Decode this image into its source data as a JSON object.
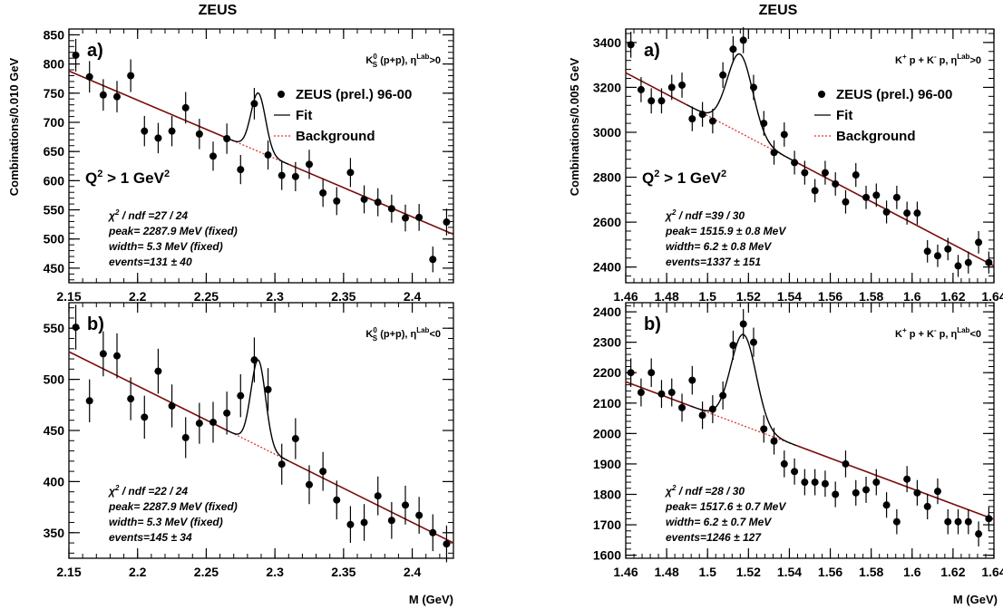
{
  "headers": {
    "left": "ZEUS",
    "right": "ZEUS"
  },
  "ylabels": {
    "left": "Combinations/0.010 GeV",
    "right": "Combinations/0.005 GeV"
  },
  "xlabel": "M (GeV)",
  "legend": {
    "data": "ZEUS (prel.) 96-00",
    "fit": "Fit",
    "background": "Background"
  },
  "q2_label": {
    "base": "Q",
    "sup1": "2",
    "mid": " > 1 GeV",
    "sup2": "2"
  },
  "chart_data": [
    {
      "type": "scatter",
      "panel_label": "a)",
      "channel_main": "K",
      "channel_sub": "S",
      "channel_sup": "0",
      "channel_rest": " (p+p), η",
      "channel_eta_sup": "Lab",
      "channel_cut": ">0",
      "xlim": [
        2.15,
        2.43
      ],
      "ylim": [
        425,
        860
      ],
      "xticks": [
        2.15,
        2.2,
        2.25,
        2.3,
        2.35,
        2.4
      ],
      "xtick_labels": [
        "2.15",
        "2.2",
        "2.25",
        "2.3",
        "2.35",
        "2.4"
      ],
      "yticks": [
        450,
        500,
        550,
        600,
        650,
        700,
        750,
        800,
        850
      ],
      "ytick_labels": [
        "450",
        "500",
        "550",
        "600",
        "650",
        "700",
        "750",
        "800",
        "850"
      ],
      "x": [
        2.155,
        2.165,
        2.175,
        2.185,
        2.195,
        2.205,
        2.215,
        2.225,
        2.235,
        2.245,
        2.255,
        2.265,
        2.275,
        2.285,
        2.295,
        2.305,
        2.315,
        2.325,
        2.335,
        2.345,
        2.355,
        2.365,
        2.375,
        2.385,
        2.395,
        2.405,
        2.415,
        2.425
      ],
      "y": [
        815,
        778,
        747,
        744,
        780,
        685,
        673,
        685,
        725,
        680,
        642,
        672,
        619,
        732,
        644,
        609,
        607,
        628,
        579,
        565,
        614,
        568,
        563,
        552,
        536,
        537,
        465,
        529
      ],
      "yerr": [
        28,
        27,
        27,
        27,
        28,
        26,
        26,
        26,
        27,
        26,
        25,
        26,
        25,
        27,
        25,
        25,
        25,
        25,
        24,
        24,
        25,
        24,
        24,
        24,
        23,
        23,
        22,
        23
      ],
      "background": {
        "x1": 2.15,
        "y1": 788,
        "x2": 2.43,
        "y2": 508
      },
      "fit": {
        "mean": 2.2879,
        "sigma": 0.0053,
        "amplitude": 100
      },
      "stats": {
        "chi2_prefix": "χ",
        "chi2_sup": "2",
        "chi2_rest": " / ndf =27 / 24",
        "peak": "peak= 2287.9 MeV (fixed)",
        "width": "width=    5.3 MeV (fixed)",
        "events": "events=131 ± 40"
      },
      "show_legend": true,
      "show_q2": true
    },
    {
      "type": "scatter",
      "panel_label": "a)",
      "channel_main": "K",
      "channel_sub": "",
      "channel_sup": "+",
      "channel_rest": " p + K",
      "channel_sup2": "-",
      "channel_rest2": " p,  η",
      "channel_eta_sup": "Lab",
      "channel_cut": ">0",
      "xlim": [
        1.46,
        1.64
      ],
      "ylim": [
        2330,
        3460
      ],
      "xticks": [
        1.46,
        1.48,
        1.5,
        1.52,
        1.54,
        1.56,
        1.58,
        1.6,
        1.62,
        1.64
      ],
      "xtick_labels": [
        "1.46",
        "1.48",
        "1.5",
        "1.52",
        "1.54",
        "1.56",
        "1.58",
        "1.6",
        "1.62",
        "1.64"
      ],
      "yticks": [
        2400,
        2600,
        2800,
        3000,
        3200,
        3400
      ],
      "ytick_labels": [
        "2400",
        "2600",
        "2800",
        "3000",
        "3200",
        "3400"
      ],
      "x": [
        1.4625,
        1.4675,
        1.4725,
        1.4775,
        1.4825,
        1.4875,
        1.4925,
        1.4975,
        1.5025,
        1.5075,
        1.5125,
        1.5175,
        1.5225,
        1.5275,
        1.5325,
        1.5375,
        1.5425,
        1.5475,
        1.5525,
        1.5575,
        1.5625,
        1.5675,
        1.5725,
        1.5775,
        1.5825,
        1.5875,
        1.5925,
        1.5975,
        1.6025,
        1.6075,
        1.6125,
        1.6175,
        1.6225,
        1.6275,
        1.6325,
        1.6375
      ],
      "y": [
        3390,
        3190,
        3140,
        3140,
        3200,
        3210,
        3060,
        3080,
        3050,
        3255,
        3370,
        3410,
        3200,
        3040,
        2910,
        2990,
        2865,
        2820,
        2740,
        2820,
        2770,
        2690,
        2810,
        2710,
        2720,
        2645,
        2710,
        2640,
        2640,
        2470,
        2450,
        2480,
        2405,
        2420,
        2510,
        2420
      ],
      "yerr": [
        58,
        56,
        56,
        56,
        56,
        56,
        55,
        55,
        55,
        57,
        58,
        58,
        56,
        55,
        54,
        54,
        53,
        53,
        52,
        53,
        52,
        52,
        53,
        52,
        52,
        51,
        52,
        51,
        51,
        50,
        50,
        50,
        49,
        49,
        50,
        49
      ],
      "background": {
        "x1": 1.46,
        "y1": 3265,
        "x2": 1.64,
        "y2": 2405
      },
      "fit": {
        "mean": 1.5159,
        "sigma": 0.0062,
        "amplitude": 350
      },
      "stats": {
        "chi2_prefix": "χ",
        "chi2_sup": "2",
        "chi2_rest": " / ndf =39 / 30",
        "peak": "peak= 1515.9 ± 0.8 MeV",
        "width": "width=    6.2 ± 0.8 MeV",
        "events": "events=1337 ± 151"
      },
      "show_legend": true,
      "show_q2": true
    },
    {
      "type": "scatter",
      "panel_label": "b)",
      "channel_main": "K",
      "channel_sub": "S",
      "channel_sup": "0",
      "channel_rest": " (p+p), η",
      "channel_eta_sup": "Lab",
      "channel_cut": "<0",
      "xlim": [
        2.15,
        2.43
      ],
      "ylim": [
        325,
        575
      ],
      "xticks": [
        2.15,
        2.2,
        2.25,
        2.3,
        2.35,
        2.4
      ],
      "xtick_labels": [
        "2.15",
        "2.2",
        "2.25",
        "2.3",
        "2.35",
        "2.4"
      ],
      "yticks": [
        350,
        400,
        450,
        500,
        550
      ],
      "ytick_labels": [
        "350",
        "400",
        "450",
        "500",
        "550"
      ],
      "x": [
        2.155,
        2.165,
        2.175,
        2.185,
        2.195,
        2.205,
        2.215,
        2.225,
        2.235,
        2.245,
        2.255,
        2.265,
        2.275,
        2.285,
        2.295,
        2.305,
        2.315,
        2.325,
        2.335,
        2.345,
        2.355,
        2.365,
        2.375,
        2.385,
        2.395,
        2.405,
        2.415,
        2.425
      ],
      "y": [
        551,
        479,
        525,
        523,
        481,
        463,
        508,
        474,
        443,
        457,
        458,
        467,
        484,
        519,
        490,
        417,
        442,
        397,
        410,
        382,
        358,
        360,
        386,
        362,
        377,
        367,
        350,
        339
      ],
      "yerr": [
        22,
        21,
        22,
        22,
        21,
        21,
        22,
        21,
        20,
        20,
        20,
        21,
        21,
        22,
        21,
        20,
        20,
        19,
        19,
        19,
        18,
        18,
        19,
        18,
        19,
        18,
        18,
        18
      ],
      "background": {
        "x1": 2.15,
        "y1": 527,
        "x2": 2.43,
        "y2": 340
      },
      "fit": {
        "mean": 2.2879,
        "sigma": 0.0053,
        "amplitude": 84
      },
      "stats": {
        "chi2_prefix": "χ",
        "chi2_sup": "2",
        "chi2_rest": " / ndf =22 / 24",
        "peak": "peak= 2287.9 MeV (fixed)",
        "width": "width=    5.3 MeV (fixed)",
        "events": "events=145 ± 34"
      },
      "show_legend": false,
      "show_q2": false
    },
    {
      "type": "scatter",
      "panel_label": "b)",
      "channel_main": "K",
      "channel_sub": "",
      "channel_sup": "+",
      "channel_rest": " p + K",
      "channel_sup2": "-",
      "channel_rest2": " p,  η",
      "channel_eta_sup": "Lab",
      "channel_cut": "<0",
      "xlim": [
        1.46,
        1.64
      ],
      "ylim": [
        1590,
        2430
      ],
      "xticks": [
        1.46,
        1.48,
        1.5,
        1.52,
        1.54,
        1.56,
        1.58,
        1.6,
        1.62,
        1.64
      ],
      "xtick_labels": [
        "1.46",
        "1.48",
        "1.5",
        "1.52",
        "1.54",
        "1.56",
        "1.58",
        "1.6",
        "1.62",
        "1.64"
      ],
      "yticks": [
        1600,
        1700,
        1800,
        1900,
        2000,
        2100,
        2200,
        2300,
        2400
      ],
      "ytick_labels": [
        "1600",
        "1700",
        "1800",
        "1900",
        "2000",
        "2100",
        "2200",
        "2300",
        "2400"
      ],
      "x": [
        1.4625,
        1.4675,
        1.4725,
        1.4775,
        1.4825,
        1.4875,
        1.4925,
        1.4975,
        1.5025,
        1.5075,
        1.5125,
        1.5175,
        1.5225,
        1.5275,
        1.5325,
        1.5375,
        1.5425,
        1.5475,
        1.5525,
        1.5575,
        1.5625,
        1.5675,
        1.5725,
        1.5775,
        1.5825,
        1.5875,
        1.5925,
        1.5975,
        1.6025,
        1.6075,
        1.6125,
        1.6175,
        1.6225,
        1.6275,
        1.6325,
        1.6375
      ],
      "y": [
        2200,
        2135,
        2200,
        2130,
        2135,
        2085,
        2175,
        2060,
        2080,
        2125,
        2290,
        2360,
        2300,
        2015,
        1975,
        1900,
        1875,
        1840,
        1840,
        1835,
        1800,
        1900,
        1805,
        1815,
        1840,
        1765,
        1710,
        1850,
        1805,
        1760,
        1810,
        1710,
        1710,
        1710,
        1670,
        1720
      ],
      "yerr": [
        47,
        46,
        47,
        46,
        46,
        46,
        47,
        45,
        46,
        46,
        48,
        49,
        48,
        45,
        44,
        44,
        43,
        43,
        43,
        43,
        42,
        44,
        42,
        43,
        43,
        42,
        41,
        43,
        42,
        42,
        42,
        41,
        41,
        41,
        41,
        41
      ],
      "background": {
        "x1": 1.46,
        "y1": 2170,
        "x2": 1.64,
        "y2": 1718
      },
      "fit": {
        "mean": 1.5176,
        "sigma": 0.0062,
        "amplitude": 300
      },
      "stats": {
        "chi2_prefix": "χ",
        "chi2_sup": "2",
        "chi2_rest": " / ndf =28 / 30",
        "peak": "peak= 1517.6 ± 0.7 MeV",
        "width": "width=    6.2 ± 0.7 MeV",
        "events": "events=1246 ± 127"
      },
      "show_legend": false,
      "show_q2": false
    }
  ]
}
